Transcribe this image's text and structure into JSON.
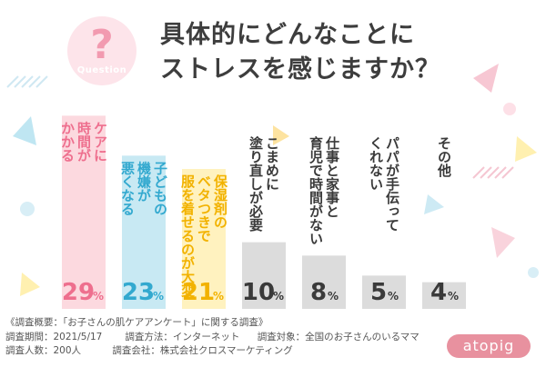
{
  "badge": {
    "mark": "?",
    "word": "Question"
  },
  "title_lines": [
    "具体的にどんなことに",
    "ストレスを感じますか？"
  ],
  "chart_data": {
    "type": "bar",
    "title": "具体的にどんなことにストレスを感じますか？",
    "categories": [
      [
        "ケアに",
        "時間が",
        "かかる"
      ],
      [
        "子どもの",
        "機嫌が",
        "悪くなる"
      ],
      [
        "保湿剤の",
        "ベタつきで",
        "服を着せるのが大変"
      ],
      [
        "こまめに",
        "塗り直しが必要"
      ],
      [
        "仕事と家事と",
        "育児で時間がない"
      ],
      [
        "パパが手伝って",
        "くれない"
      ],
      [
        "その他"
      ]
    ],
    "values": [
      29,
      23,
      21,
      10,
      8,
      5,
      4
    ],
    "unit": "%",
    "ylim": [
      0,
      30
    ],
    "colors": [
      "#fcd9df",
      "#c8e9f3",
      "#fff2bf",
      "#dcdcdc",
      "#dcdcdc",
      "#dcdcdc",
      "#dcdcdc"
    ],
    "label_colors": [
      "#ee6f8e",
      "#33a9cf",
      "#f2b200",
      "#3a3a3a",
      "#3a3a3a",
      "#3a3a3a",
      "#3a3a3a"
    ],
    "value_colors": [
      "#ee6f8e",
      "#33a9cf",
      "#f2b200",
      "#3a3a3a",
      "#3a3a3a",
      "#3a3a3a",
      "#3a3a3a"
    ],
    "grid": false,
    "legend": "none"
  },
  "footer": {
    "line1": "《調査概要：「お子さんの肌ケアアンケート」に関する調査》",
    "period": "調査期間：2021/5/17",
    "method": "調査方法：インターネット",
    "target": "調査対象：全国のお子さんのいるママ",
    "count": "調査人数：200人",
    "company": "調査会社：株式会社クロスマーケティング"
  },
  "brand": "atopig"
}
